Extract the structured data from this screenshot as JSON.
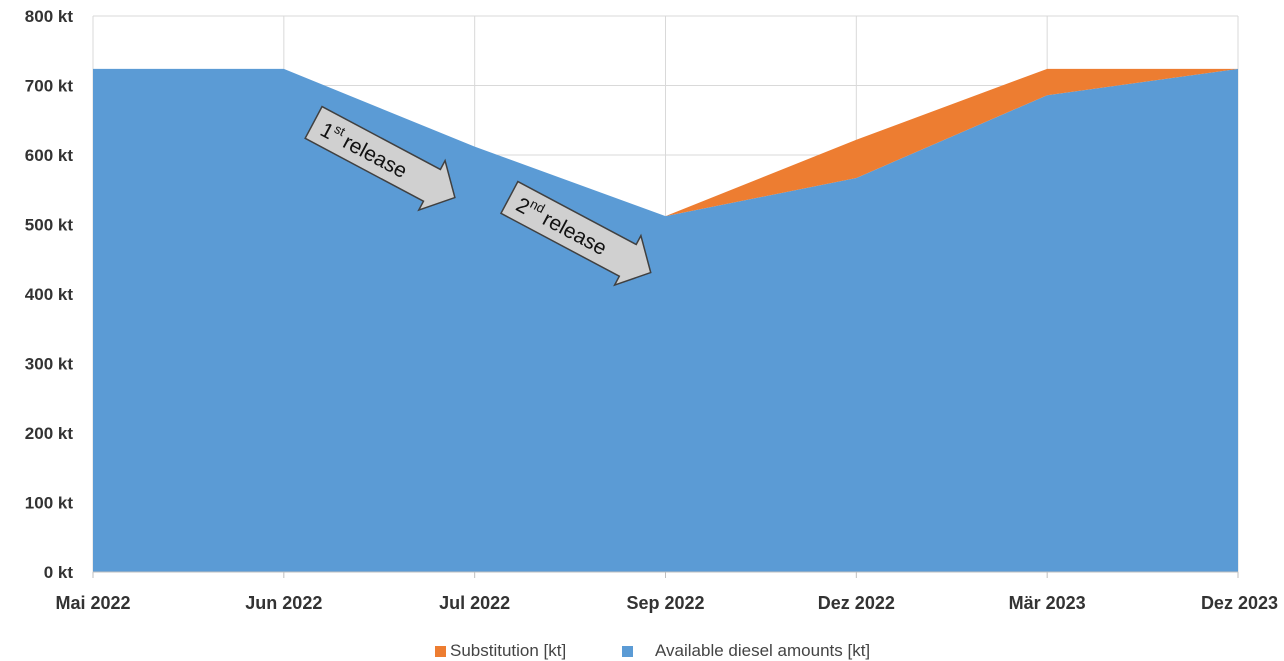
{
  "chart_data": {
    "type": "area",
    "stacked": true,
    "x": [
      "Mai 2022",
      "Jun 2022",
      "Jul 2022",
      "Sep 2022",
      "Dez 2022",
      "Mär 2023",
      "Dez 2023"
    ],
    "y_ticks": [
      "0 kt",
      "100 kt",
      "200 kt",
      "300 kt",
      "400 kt",
      "500 kt",
      "600 kt",
      "700 kt",
      "800 kt"
    ],
    "ylim": [
      0,
      800
    ],
    "unit": "kt",
    "grid": true,
    "legend_position": "bottom",
    "series": [
      {
        "name": "Available diesel amounts [kt]",
        "color": "#5b9bd5",
        "values": [
          724,
          724,
          612,
          512,
          567,
          686,
          724
        ]
      },
      {
        "name": "Substitution [kt]",
        "color": "#ed7d31",
        "values": [
          0,
          0,
          0,
          0,
          55,
          38,
          0
        ]
      }
    ],
    "annotations": [
      {
        "sup_base": "1",
        "sup": "st",
        "text": "release",
        "from_month": "Jun 2022",
        "to_month": "Jul 2022"
      },
      {
        "sup_base": "2",
        "sup": "nd",
        "text": "release",
        "from_month": "Jul 2022",
        "to_month": "Sep 2022"
      }
    ]
  }
}
